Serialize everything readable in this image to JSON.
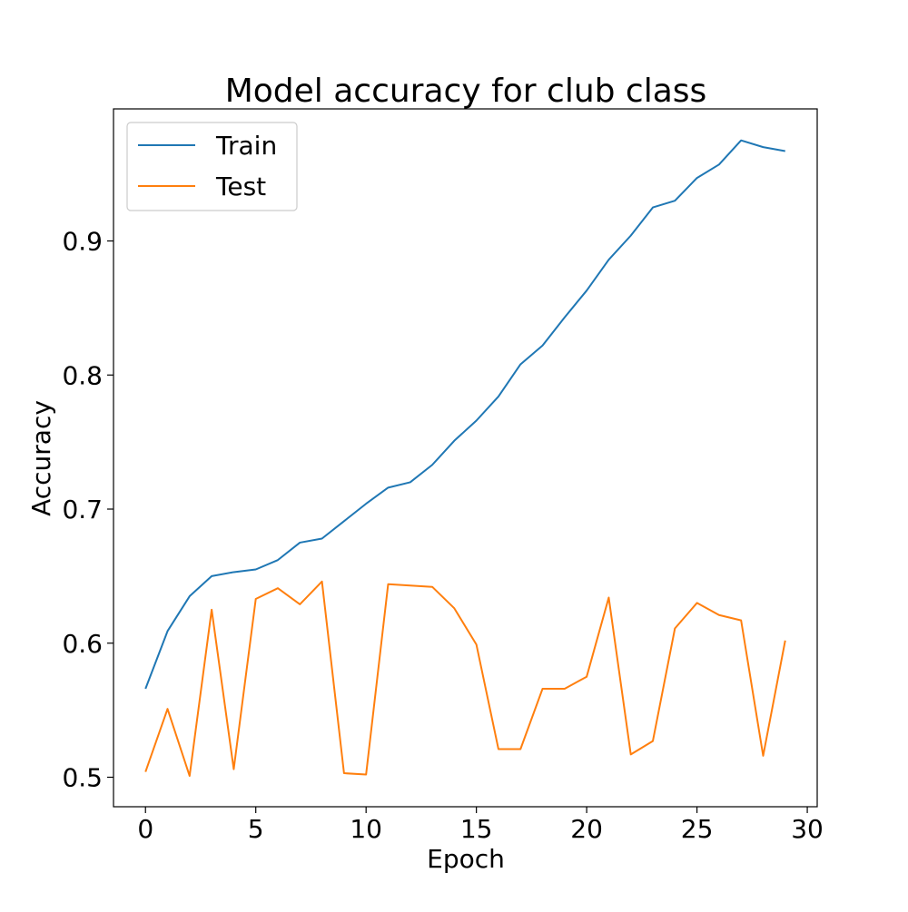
{
  "chart_data": {
    "type": "line",
    "title": "Model accuracy for club class",
    "xlabel": "Epoch",
    "ylabel": "Accuracy",
    "xlim": [
      -1.45,
      30.45
    ],
    "ylim": [
      0.478,
      0.9985
    ],
    "xticks": [
      0,
      5,
      10,
      15,
      20,
      25,
      30
    ],
    "xtick_labels": [
      "0",
      "5",
      "10",
      "15",
      "20",
      "25",
      "30"
    ],
    "yticks": [
      0.5,
      0.6,
      0.7,
      0.8,
      0.9
    ],
    "ytick_labels": [
      "0.5",
      "0.6",
      "0.7",
      "0.8",
      "0.9"
    ],
    "grid": false,
    "legend_position": "top-left",
    "x": [
      0,
      1,
      2,
      3,
      4,
      5,
      6,
      7,
      8,
      9,
      10,
      11,
      12,
      13,
      14,
      15,
      16,
      17,
      18,
      19,
      20,
      21,
      22,
      23,
      24,
      25,
      26,
      27,
      28,
      29
    ],
    "series": [
      {
        "name": "Train",
        "color": "#1f77b4",
        "values": [
          0.566,
          0.609,
          0.635,
          0.65,
          0.653,
          0.655,
          0.662,
          0.675,
          0.678,
          0.691,
          0.704,
          0.716,
          0.72,
          0.733,
          0.751,
          0.766,
          0.784,
          0.808,
          0.822,
          0.843,
          0.863,
          0.886,
          0.904,
          0.925,
          0.93,
          0.947,
          0.957,
          0.975,
          0.97,
          0.967
        ]
      },
      {
        "name": "Test",
        "color": "#ff7f0e",
        "values": [
          0.504,
          0.551,
          0.501,
          0.625,
          0.506,
          0.633,
          0.641,
          0.629,
          0.646,
          0.503,
          0.502,
          0.644,
          0.643,
          0.642,
          0.626,
          0.599,
          0.521,
          0.521,
          0.566,
          0.566,
          0.575,
          0.634,
          0.517,
          0.527,
          0.611,
          0.63,
          0.621,
          0.617,
          0.516,
          0.602
        ]
      }
    ]
  }
}
